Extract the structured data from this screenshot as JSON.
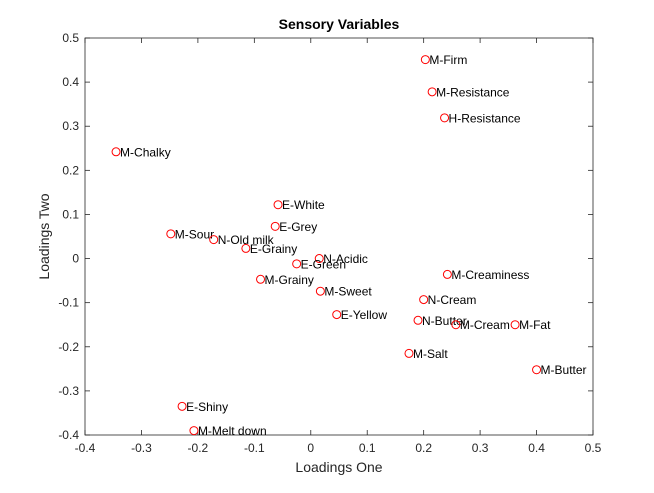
{
  "chart_data": {
    "type": "scatter",
    "title": "Sensory Variables",
    "xlabel": "Loadings One",
    "ylabel": "Loadings Two",
    "xlim": [
      -0.4,
      0.5
    ],
    "ylim": [
      -0.4,
      0.5
    ],
    "xticks": [
      "-0.4",
      "-0.3",
      "-0.2",
      "-0.1",
      "0",
      "0.1",
      "0.2",
      "0.3",
      "0.4",
      "0.5"
    ],
    "yticks": [
      "-0.4",
      "-0.3",
      "-0.2",
      "-0.1",
      "0",
      "0.1",
      "0.2",
      "0.3",
      "0.4",
      "0.5"
    ],
    "grid": false,
    "marker": "circle",
    "marker_color": "#ff0000",
    "points": [
      {
        "label": "M-Firm",
        "x": 0.203,
        "y": 0.451
      },
      {
        "label": "M-Resistance",
        "x": 0.215,
        "y": 0.378
      },
      {
        "label": "H-Resistance",
        "x": 0.237,
        "y": 0.319
      },
      {
        "label": "M-Chalky",
        "x": -0.345,
        "y": 0.242
      },
      {
        "label": "E-White",
        "x": -0.058,
        "y": 0.122
      },
      {
        "label": "E-Grey",
        "x": -0.063,
        "y": 0.073
      },
      {
        "label": "M-Sour",
        "x": -0.248,
        "y": 0.056
      },
      {
        "label": "N-Old milk",
        "x": -0.172,
        "y": 0.043
      },
      {
        "label": "E-Grainy",
        "x": -0.115,
        "y": 0.023
      },
      {
        "label": "N-Acidic",
        "x": 0.015,
        "y": 0.0
      },
      {
        "label": "E-Green",
        "x": -0.025,
        "y": -0.012
      },
      {
        "label": "M-Grainy",
        "x": -0.089,
        "y": -0.047
      },
      {
        "label": "M-Sweet",
        "x": 0.017,
        "y": -0.074
      },
      {
        "label": "M-Creaminess",
        "x": 0.242,
        "y": -0.036
      },
      {
        "label": "N-Cream",
        "x": 0.2,
        "y": -0.093
      },
      {
        "label": "E-Yellow",
        "x": 0.046,
        "y": -0.127
      },
      {
        "label": "N-Butter",
        "x": 0.19,
        "y": -0.14
      },
      {
        "label": "M-Cream",
        "x": 0.257,
        "y": -0.15
      },
      {
        "label": "M-Fat",
        "x": 0.362,
        "y": -0.15
      },
      {
        "label": "M-Salt",
        "x": 0.174,
        "y": -0.215
      },
      {
        "label": "M-Butter",
        "x": 0.4,
        "y": -0.252
      },
      {
        "label": "E-Shiny",
        "x": -0.228,
        "y": -0.335
      },
      {
        "label": "M-Melt down",
        "x": -0.207,
        "y": -0.39
      }
    ]
  }
}
